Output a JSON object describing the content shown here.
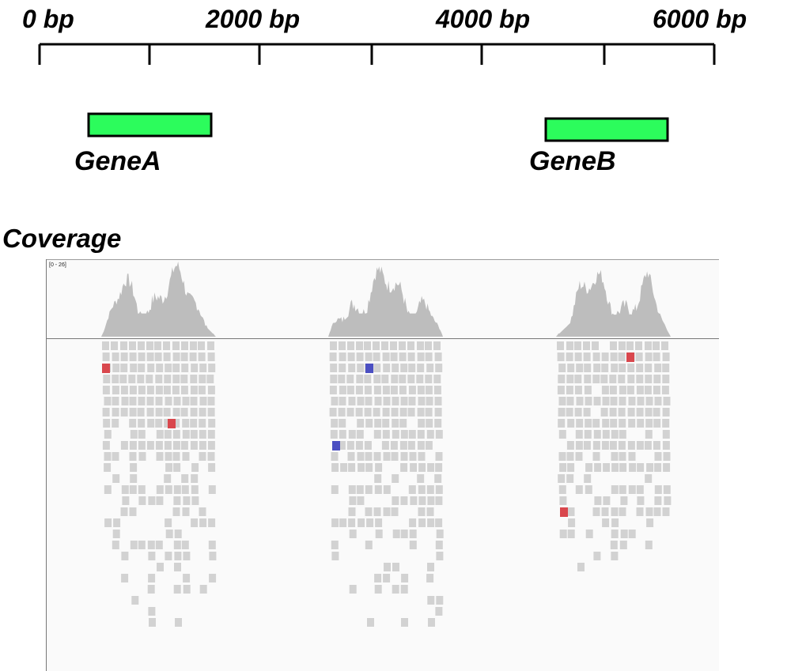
{
  "ruler": {
    "labels": [
      {
        "text": "0 bp",
        "bp": 0
      },
      {
        "text": "2000 bp",
        "bp": 2000
      },
      {
        "text": "4000 bp",
        "bp": 4000
      },
      {
        "text": "6000 bp",
        "bp": 6000
      }
    ],
    "ticks_bp": [
      0,
      1000,
      2000,
      3000,
      4000,
      5000,
      6000
    ]
  },
  "genes": [
    {
      "name": "GeneA",
      "start_bp": 450,
      "end_bp": 1570,
      "color": "#2cfc5c"
    },
    {
      "name": "GeneB",
      "start_bp": 4620,
      "end_bp": 5740,
      "color": "#2cfc5c"
    }
  ],
  "coverage": {
    "title": "Coverage",
    "range_label": "[0 - 26]",
    "fill_color": "#bdbdbd",
    "read_color": "#d2d2d2",
    "mismatch_colors": {
      "red": "#d9474d",
      "blue": "#4b4fc2"
    }
  },
  "colors": {
    "ink": "#000000",
    "panel_bg": "#fafafa",
    "panel_border": "#777777"
  }
}
